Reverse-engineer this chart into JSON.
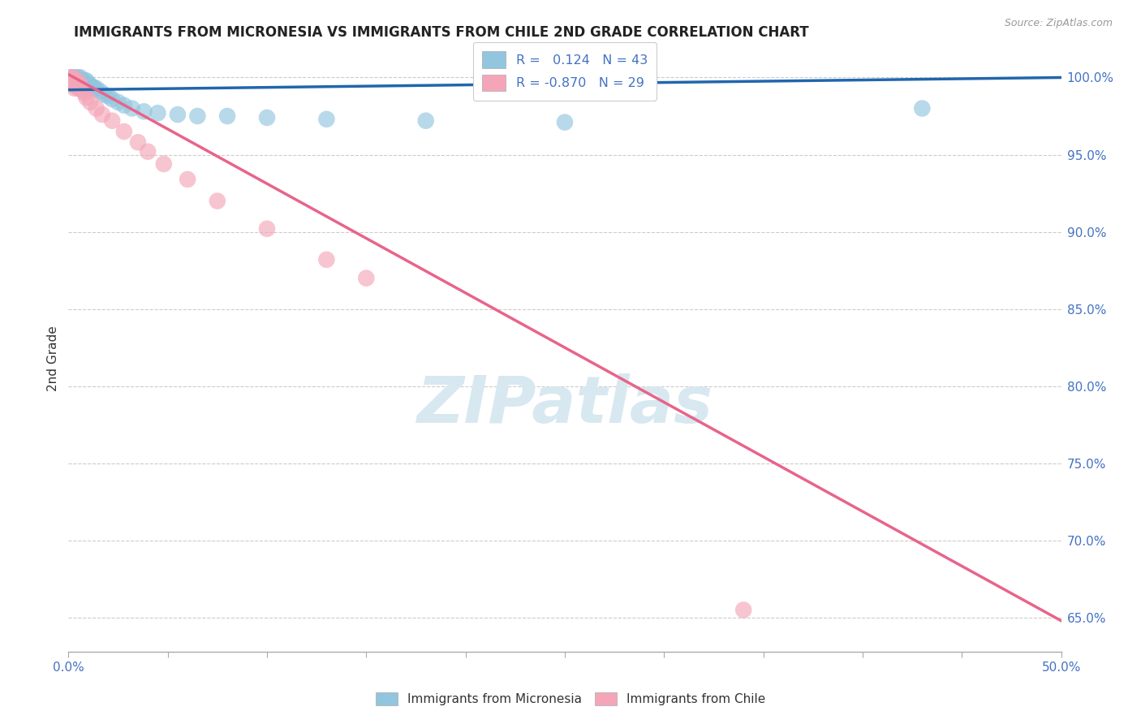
{
  "title": "IMMIGRANTS FROM MICRONESIA VS IMMIGRANTS FROM CHILE 2ND GRADE CORRELATION CHART",
  "source": "Source: ZipAtlas.com",
  "ylabel": "2nd Grade",
  "xlim": [
    0.0,
    0.5
  ],
  "ylim": [
    0.628,
    1.008
  ],
  "xticks": [
    0.0,
    0.05,
    0.1,
    0.15,
    0.2,
    0.25,
    0.3,
    0.35,
    0.4,
    0.45,
    0.5
  ],
  "yticks": [
    0.65,
    0.7,
    0.75,
    0.8,
    0.85,
    0.9,
    0.95,
    1.0
  ],
  "yticklabels": [
    "65.0%",
    "70.0%",
    "75.0%",
    "80.0%",
    "85.0%",
    "90.0%",
    "95.0%",
    "100.0%"
  ],
  "micronesia_color": "#92c5de",
  "chile_color": "#f4a6b8",
  "micronesia_label": "Immigrants from Micronesia",
  "chile_label": "Immigrants from Chile",
  "R_micronesia": 0.124,
  "N_micronesia": 43,
  "R_chile": -0.87,
  "N_chile": 29,
  "trend_micronesia_color": "#2166ac",
  "trend_chile_color": "#e8648a",
  "background_color": "#ffffff",
  "watermark": "ZIPatlas",
  "micronesia_x": [
    0.001,
    0.002,
    0.002,
    0.003,
    0.003,
    0.003,
    0.004,
    0.004,
    0.004,
    0.005,
    0.005,
    0.005,
    0.006,
    0.006,
    0.006,
    0.007,
    0.007,
    0.008,
    0.008,
    0.009,
    0.009,
    0.01,
    0.011,
    0.012,
    0.013,
    0.014,
    0.016,
    0.018,
    0.02,
    0.022,
    0.025,
    0.028,
    0.032,
    0.038,
    0.045,
    0.055,
    0.065,
    0.08,
    0.1,
    0.13,
    0.18,
    0.25,
    0.43
  ],
  "micronesia_y": [
    1.0,
    1.0,
    0.998,
    1.0,
    0.998,
    0.995,
    1.0,
    0.998,
    0.995,
    1.0,
    0.998,
    0.995,
    1.0,
    0.998,
    0.995,
    0.998,
    0.995,
    0.998,
    0.995,
    0.998,
    0.993,
    0.996,
    0.995,
    0.994,
    0.993,
    0.993,
    0.991,
    0.989,
    0.988,
    0.986,
    0.984,
    0.982,
    0.98,
    0.978,
    0.977,
    0.976,
    0.975,
    0.975,
    0.974,
    0.973,
    0.972,
    0.971,
    0.98
  ],
  "chile_x": [
    0.001,
    0.001,
    0.002,
    0.002,
    0.003,
    0.003,
    0.003,
    0.004,
    0.004,
    0.005,
    0.005,
    0.006,
    0.007,
    0.008,
    0.009,
    0.011,
    0.014,
    0.017,
    0.022,
    0.028,
    0.035,
    0.04,
    0.048,
    0.06,
    0.075,
    0.1,
    0.13,
    0.15,
    0.34
  ],
  "chile_y": [
    1.0,
    0.998,
    1.0,
    0.997,
    0.999,
    0.996,
    0.993,
    0.998,
    0.994,
    0.997,
    0.993,
    0.995,
    0.992,
    0.99,
    0.987,
    0.984,
    0.98,
    0.976,
    0.972,
    0.965,
    0.958,
    0.952,
    0.944,
    0.934,
    0.92,
    0.902,
    0.882,
    0.87,
    0.655
  ],
  "trend_mic_x0": 0.0,
  "trend_mic_y0": 0.992,
  "trend_mic_x1": 0.5,
  "trend_mic_y1": 1.0,
  "trend_chile_x0": 0.0,
  "trend_chile_y0": 1.002,
  "trend_chile_x1": 0.5,
  "trend_chile_y1": 0.648
}
